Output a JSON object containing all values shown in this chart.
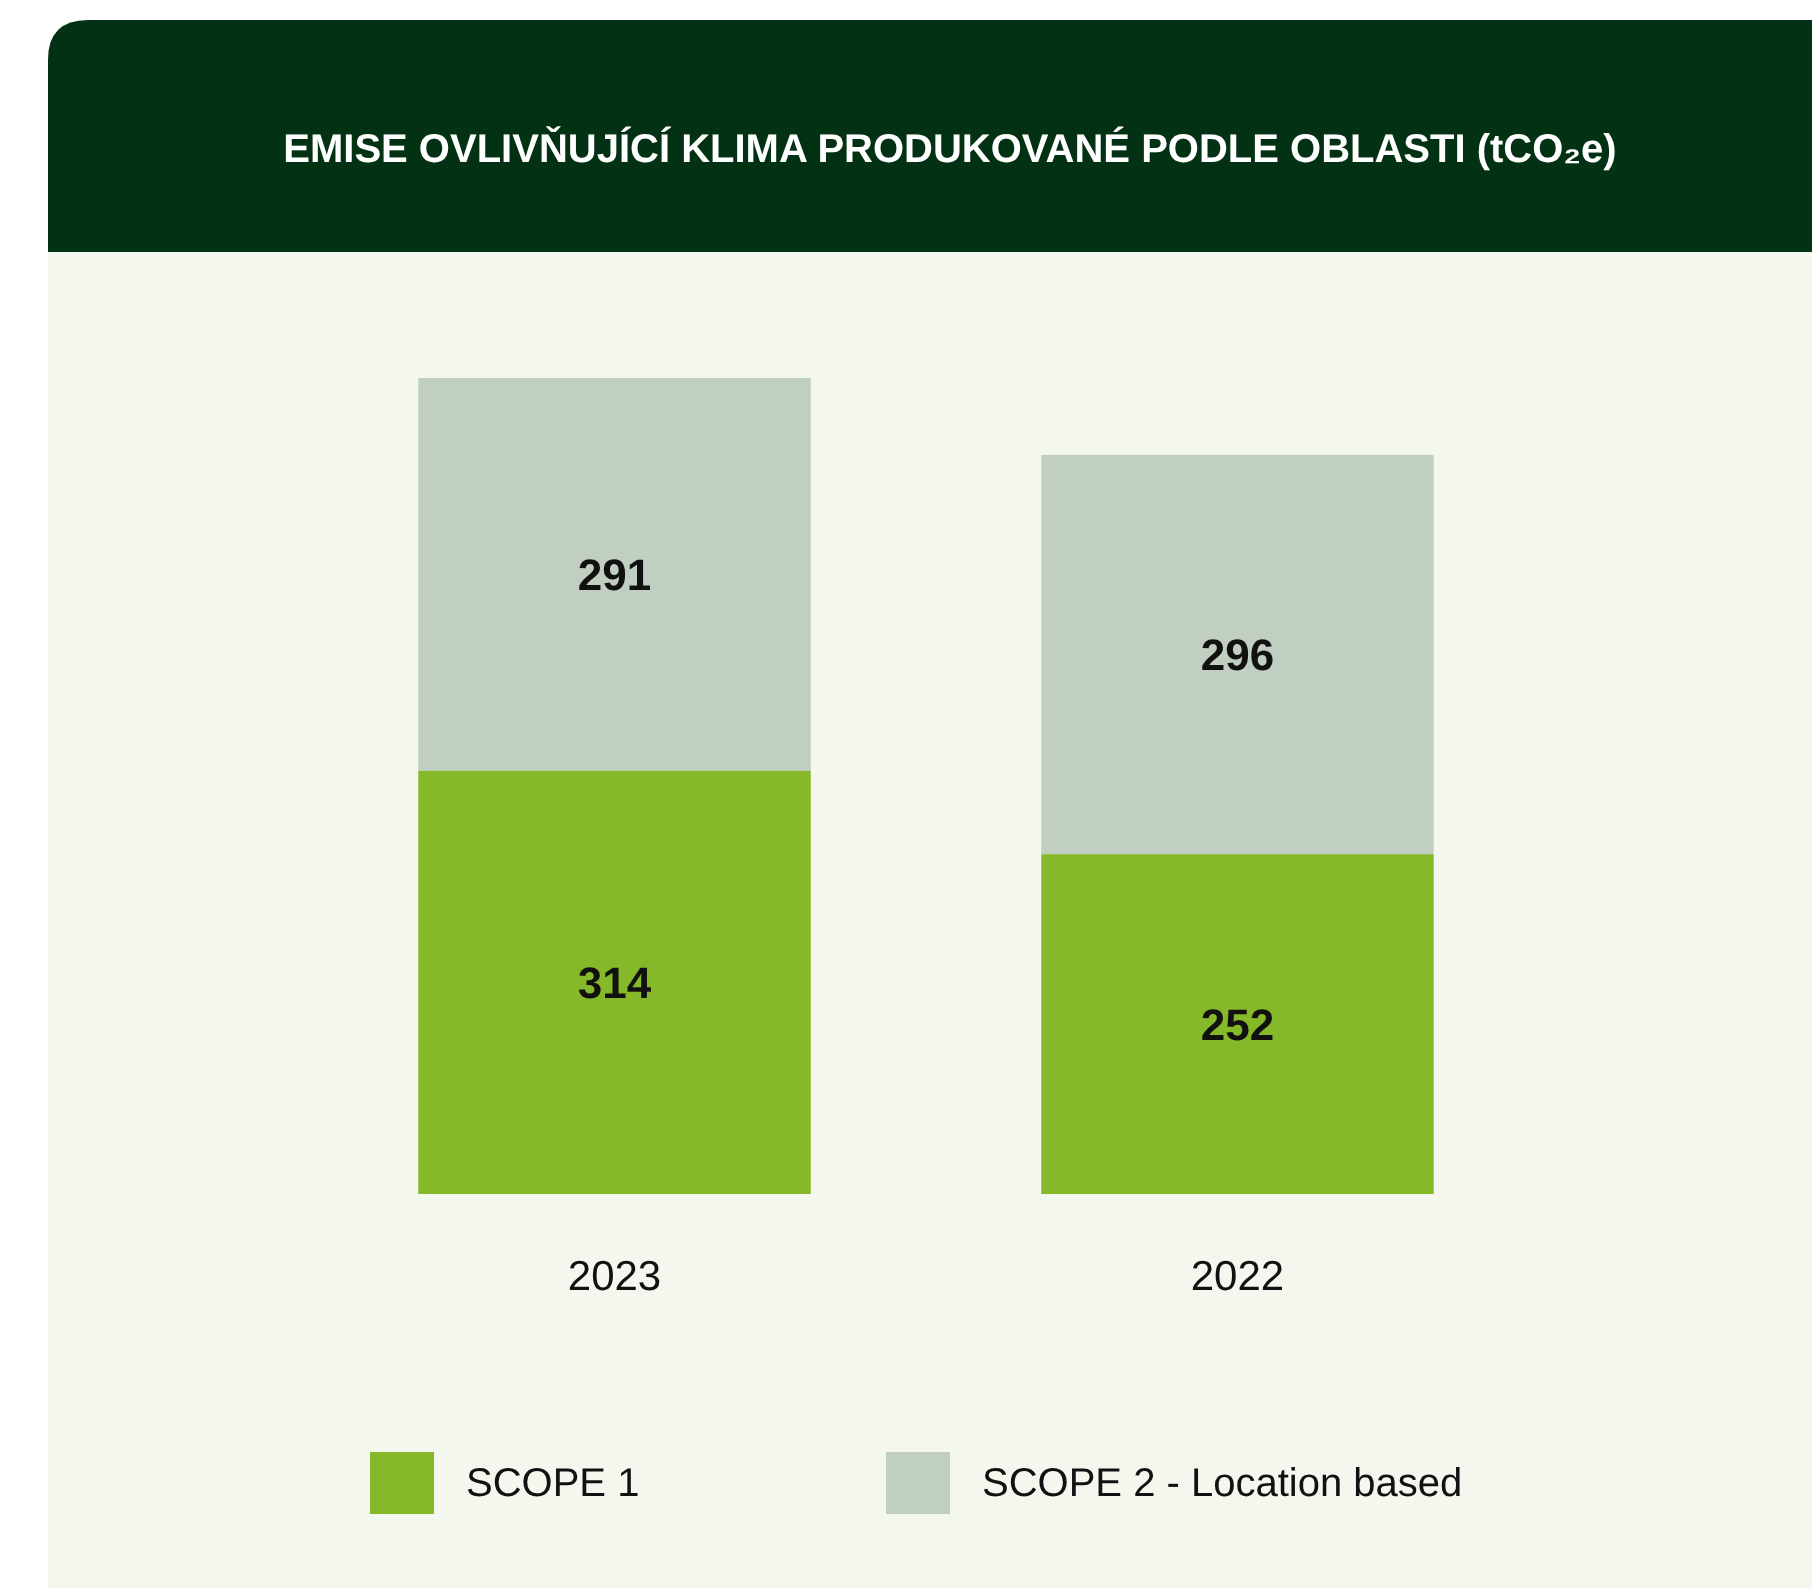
{
  "chart_data": {
    "type": "bar",
    "title": "EMISE OVLIVŇUJÍCÍ KLIMA PRODUKOVANÉ PODLE OBLASTI (tCO₂e)",
    "categories": [
      "2023",
      "2022"
    ],
    "stacked": true,
    "data_labels": true,
    "legend": "bottom",
    "series": [
      {
        "name": "SCOPE 1",
        "color": "#86b929",
        "values": [
          314,
          252
        ]
      },
      {
        "name": "SCOPE 2 - Location based",
        "color": "#c0cfc2",
        "values": [
          291,
          296
        ]
      }
    ]
  }
}
